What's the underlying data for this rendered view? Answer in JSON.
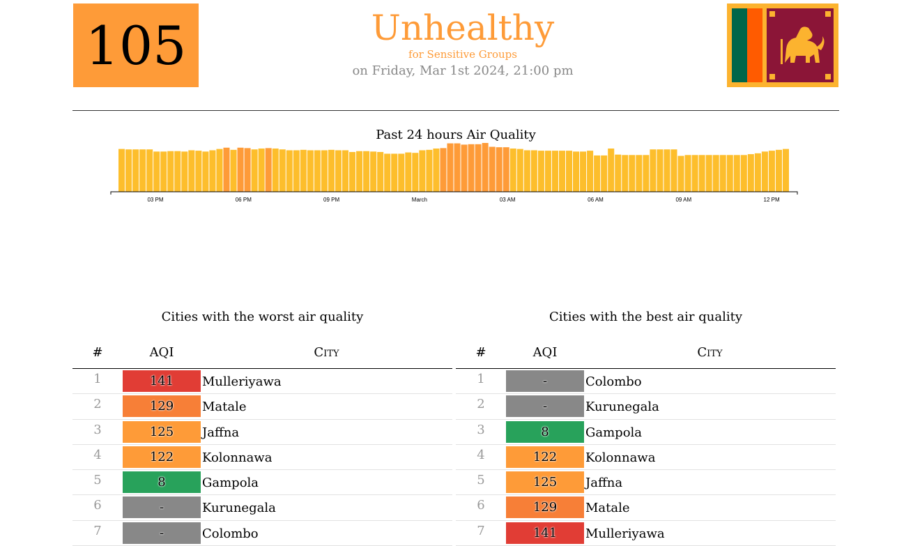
{
  "header": {
    "aqi_value": "105",
    "aqi_color": "#fe9b38",
    "status": "Unhealthy",
    "status_sub": "for Sensitive Groups",
    "datetime": "on Friday, Mar 1st 2024, 21:00 pm"
  },
  "flag": {
    "icon": "sri-lanka-flag",
    "colors": [
      "#fcb32f",
      "#00664a",
      "#ff5b00",
      "#8b1537"
    ]
  },
  "chart_data": {
    "type": "bar",
    "title": "Past 24 hours Air Quality",
    "xlabel": "",
    "ylabel": "",
    "tick_labels": [
      "03 PM",
      "06 PM",
      "09 PM",
      "March",
      "03 AM",
      "06 AM",
      "09 AM",
      "12 PM"
    ],
    "values": [
      99,
      98,
      98,
      98,
      98,
      93,
      93,
      94,
      94,
      93,
      96,
      95,
      93,
      96,
      99,
      102,
      97,
      102,
      101,
      98,
      100,
      101,
      100,
      98,
      96,
      96,
      97,
      96,
      96,
      96,
      97,
      96,
      96,
      92,
      94,
      94,
      93,
      92,
      88,
      88,
      88,
      91,
      90,
      96,
      97,
      100,
      101,
      112,
      112,
      109,
      110,
      110,
      115,
      104,
      103,
      103,
      100,
      99,
      96,
      96,
      95,
      95,
      95,
      95,
      95,
      93,
      93,
      95,
      84,
      84,
      100,
      86,
      85,
      85,
      85,
      85,
      98,
      98,
      98,
      98,
      83,
      85,
      85,
      85,
      85,
      85,
      85,
      85,
      85,
      85,
      87,
      89,
      93,
      95,
      97,
      99
    ],
    "colors": {
      "moderate": "#fdbe2c",
      "usg": "#fe9b38"
    }
  },
  "worst_table": {
    "title": "Cities with the worst air quality",
    "headers": [
      "#",
      "AQI",
      "City"
    ],
    "rows": [
      {
        "rank": "1",
        "aqi": "141",
        "color": "#e13d35",
        "city": "Mulleriyawa"
      },
      {
        "rank": "2",
        "aqi": "129",
        "color": "#f77f37",
        "city": "Matale"
      },
      {
        "rank": "3",
        "aqi": "125",
        "color": "#fe9b38",
        "city": "Jaffna"
      },
      {
        "rank": "4",
        "aqi": "122",
        "color": "#fe9b38",
        "city": "Kolonnawa"
      },
      {
        "rank": "5",
        "aqi": "8",
        "color": "#28a25b",
        "city": "Gampola"
      },
      {
        "rank": "6",
        "aqi": "-",
        "color": "#888888",
        "city": "Kurunegala"
      },
      {
        "rank": "7",
        "aqi": "-",
        "color": "#888888",
        "city": "Colombo"
      }
    ]
  },
  "best_table": {
    "title": "Cities with the best air quality",
    "headers": [
      "#",
      "AQI",
      "City"
    ],
    "rows": [
      {
        "rank": "1",
        "aqi": "-",
        "color": "#888888",
        "city": "Colombo"
      },
      {
        "rank": "2",
        "aqi": "-",
        "color": "#888888",
        "city": "Kurunegala"
      },
      {
        "rank": "3",
        "aqi": "8",
        "color": "#28a25b",
        "city": "Gampola"
      },
      {
        "rank": "4",
        "aqi": "122",
        "color": "#fe9b38",
        "city": "Kolonnawa"
      },
      {
        "rank": "5",
        "aqi": "125",
        "color": "#fe9b38",
        "city": "Jaffna"
      },
      {
        "rank": "6",
        "aqi": "129",
        "color": "#f77f37",
        "city": "Matale"
      },
      {
        "rank": "7",
        "aqi": "141",
        "color": "#e13d35",
        "city": "Mulleriyawa"
      }
    ]
  }
}
